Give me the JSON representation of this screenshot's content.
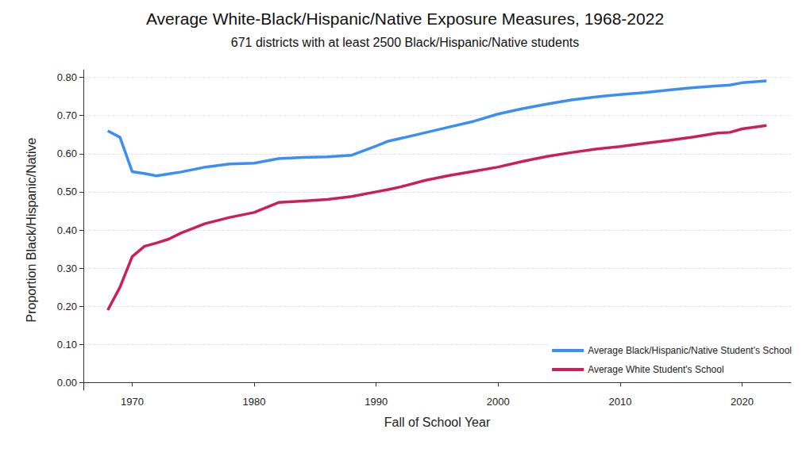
{
  "chart_data": {
    "type": "line",
    "title": "Average White-Black/Hispanic/Native Exposure Measures, 1968-2022",
    "subtitle": "671 districts with at least 2500 Black/Hispanic/Native students",
    "x_label": "Fall of School Year",
    "y_label": "Proportion Black/Hispanic/Native",
    "x": [
      1968,
      1969,
      1970,
      1971,
      1972,
      1973,
      1974,
      1976,
      1978,
      1980,
      1982,
      1984,
      1986,
      1988,
      1990,
      1991,
      1992,
      1994,
      1996,
      1998,
      2000,
      2002,
      2004,
      2006,
      2008,
      2010,
      2012,
      2014,
      2016,
      2018,
      2019,
      2020,
      2022
    ],
    "series": [
      {
        "name": "Average Black/Hispanic/Native Student's School",
        "color": "#3b8ef5",
        "values": [
          0.66,
          0.643,
          0.553,
          0.548,
          0.542,
          0.547,
          0.552,
          0.565,
          0.573,
          0.575,
          0.587,
          0.59,
          0.592,
          0.596,
          0.62,
          0.633,
          0.64,
          0.655,
          0.67,
          0.685,
          0.704,
          0.718,
          0.73,
          0.741,
          0.749,
          0.755,
          0.76,
          0.767,
          0.773,
          0.778,
          0.78,
          0.786,
          0.791
        ]
      },
      {
        "name": "Average White Student's School",
        "color": "#cc1f5a",
        "values": [
          0.19,
          0.25,
          0.33,
          0.357,
          0.366,
          0.376,
          0.392,
          0.417,
          0.433,
          0.446,
          0.472,
          0.476,
          0.48,
          0.488,
          0.5,
          0.506,
          0.513,
          0.53,
          0.543,
          0.554,
          0.565,
          0.58,
          0.593,
          0.603,
          0.612,
          0.619,
          0.627,
          0.635,
          0.644,
          0.654,
          0.656,
          0.665,
          0.674
        ]
      }
    ],
    "xlim": [
      1966,
      2024
    ],
    "xticks": [
      1970,
      1980,
      1990,
      2000,
      2010,
      2020
    ],
    "ylim": [
      -0.02,
      0.82
    ],
    "yticks": [
      {
        "value": 0,
        "label": "0.00"
      },
      {
        "value": 0.1,
        "label": "0.10"
      },
      {
        "value": 0.2,
        "label": "0.20"
      },
      {
        "value": 0.3,
        "label": "0.30"
      },
      {
        "value": 0.4,
        "label": "0.40"
      },
      {
        "value": 0.5,
        "label": "0.50"
      },
      {
        "value": 0.6,
        "label": "0.60"
      },
      {
        "value": 0.7,
        "label": "0.70"
      },
      {
        "value": 0.8,
        "label": "0.80"
      }
    ],
    "grid": true,
    "legend": "lower right"
  }
}
